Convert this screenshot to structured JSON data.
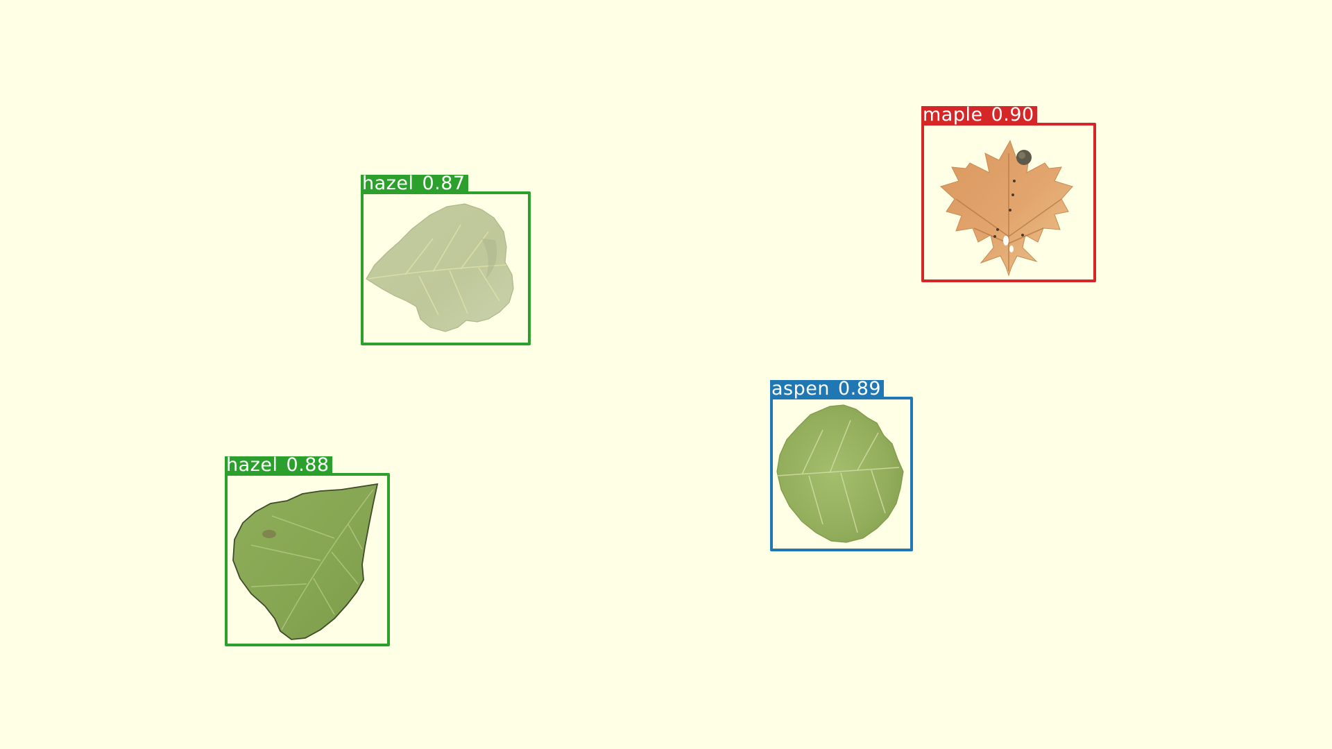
{
  "detections": [
    {
      "id": "maple",
      "class_label": "maple",
      "score": "0.90",
      "color": "#D62728",
      "object": "maple-leaf-icon"
    },
    {
      "id": "hazel-a",
      "class_label": "hazel",
      "score": "0.87",
      "color": "#2CA02C",
      "object": "hazel-leaf-icon"
    },
    {
      "id": "aspen",
      "class_label": "aspen",
      "score": "0.89",
      "color": "#1F77B4",
      "object": "aspen-leaf-icon"
    },
    {
      "id": "hazel-b",
      "class_label": "hazel",
      "score": "0.88",
      "color": "#2CA02C",
      "object": "hazel-leaf-icon"
    }
  ],
  "background_color": "#FFFFE6"
}
